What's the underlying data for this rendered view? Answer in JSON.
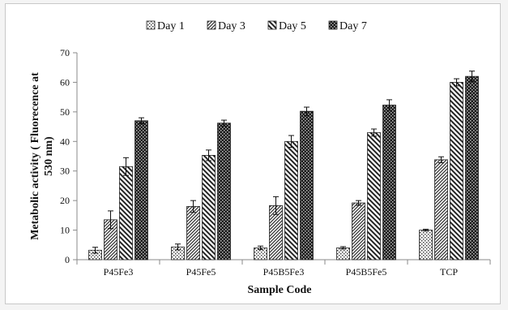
{
  "chart_data": {
    "type": "bar",
    "categories": [
      "P45Fe3",
      "P45Fe5",
      "P45B5Fe3",
      "P45B5Fe5",
      "TCP"
    ],
    "series": [
      {
        "name": "Day 1",
        "values": [
          3.2,
          4.3,
          4.0,
          4.0,
          10.0
        ],
        "errors": [
          1.0,
          1.0,
          0.6,
          0.4,
          0.3
        ]
      },
      {
        "name": "Day 3",
        "values": [
          13.5,
          18.0,
          18.3,
          19.2,
          33.8
        ],
        "errors": [
          3.0,
          2.0,
          3.0,
          0.8,
          1.0
        ]
      },
      {
        "name": "Day 5",
        "values": [
          31.5,
          35.3,
          40.0,
          43.0,
          60.0
        ],
        "errors": [
          3.0,
          1.8,
          2.0,
          1.2,
          1.2
        ]
      },
      {
        "name": "Day 7",
        "values": [
          47.0,
          46.2,
          50.2,
          52.3,
          62.0
        ],
        "errors": [
          1.0,
          1.0,
          1.4,
          1.8,
          1.8
        ]
      }
    ],
    "xlabel": "Sample Code",
    "ylabel_lines": [
      "Metabolic activity ( Fluorecence at",
      "530 nm)"
    ],
    "ylim": [
      0,
      70
    ],
    "yticks": [
      0,
      10,
      20,
      30,
      40,
      50,
      60,
      70
    ],
    "legend_position": "top",
    "grid": false,
    "series_patterns": [
      "dots",
      "diag-up",
      "diag-down",
      "checker"
    ]
  }
}
